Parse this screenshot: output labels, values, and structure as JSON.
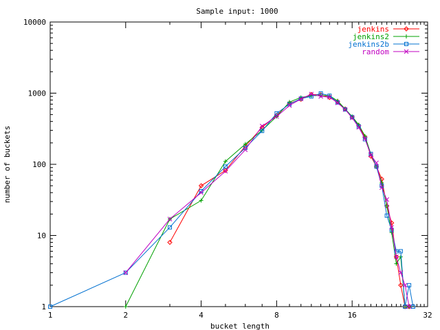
{
  "chart_data": {
    "type": "line",
    "title": "Sample input: 1000",
    "xlabel": "bucket length",
    "ylabel": "number of buckets",
    "xscale": "log2",
    "yscale": "log10",
    "xlim": [
      1,
      32
    ],
    "ylim": [
      1,
      10000
    ],
    "xticks": [
      "1",
      "2",
      "4",
      "8",
      "16",
      "32"
    ],
    "yticks": [
      "1",
      "10",
      "100",
      "1000",
      "10000"
    ],
    "grid": false,
    "legend": "top-right",
    "series": [
      {
        "name": "jenkins",
        "color": "#ff0000",
        "marker": "diamond",
        "points": [
          [
            3,
            8
          ],
          [
            4,
            50
          ],
          [
            5,
            82
          ],
          [
            6,
            180
          ],
          [
            7,
            330
          ],
          [
            8,
            490
          ],
          [
            9,
            720
          ],
          [
            10,
            820
          ],
          [
            11,
            960
          ],
          [
            12,
            950
          ],
          [
            13,
            870
          ],
          [
            14,
            760
          ],
          [
            15,
            600
          ],
          [
            16,
            460
          ],
          [
            17,
            350
          ],
          [
            18,
            240
          ],
          [
            19,
            130
          ],
          [
            20,
            93
          ],
          [
            21,
            62
          ],
          [
            22,
            26
          ],
          [
            23,
            15
          ],
          [
            24,
            5
          ],
          [
            25,
            2
          ],
          [
            26,
            1
          ],
          [
            27,
            1
          ]
        ]
      },
      {
        "name": "jenkins2",
        "color": "#00a000",
        "marker": "plus",
        "points": [
          [
            2,
            1
          ],
          [
            3,
            17
          ],
          [
            4,
            31
          ],
          [
            5,
            110
          ],
          [
            6,
            192
          ],
          [
            7,
            300
          ],
          [
            8,
            470
          ],
          [
            9,
            750
          ],
          [
            10,
            870
          ],
          [
            11,
            920
          ],
          [
            12,
            930
          ],
          [
            13,
            920
          ],
          [
            14,
            780
          ],
          [
            15,
            600
          ],
          [
            16,
            470
          ],
          [
            17,
            360
          ],
          [
            18,
            250
          ],
          [
            19,
            140
          ],
          [
            20,
            93
          ],
          [
            21,
            55
          ],
          [
            22,
            26
          ],
          [
            23,
            11
          ],
          [
            24,
            4
          ],
          [
            25,
            5
          ],
          [
            26,
            1
          ],
          [
            27,
            1
          ]
        ]
      },
      {
        "name": "jenkins2b",
        "color": "#0070d0",
        "marker": "square",
        "points": [
          [
            1,
            1
          ],
          [
            2,
            3
          ],
          [
            3,
            13
          ],
          [
            4,
            42
          ],
          [
            5,
            93
          ],
          [
            6,
            170
          ],
          [
            7,
            295
          ],
          [
            8,
            520
          ],
          [
            9,
            700
          ],
          [
            10,
            840
          ],
          [
            11,
            900
          ],
          [
            12,
            990
          ],
          [
            13,
            920
          ],
          [
            14,
            740
          ],
          [
            15,
            590
          ],
          [
            16,
            460
          ],
          [
            17,
            340
          ],
          [
            18,
            225
          ],
          [
            19,
            140
          ],
          [
            20,
            93
          ],
          [
            21,
            50
          ],
          [
            22,
            19
          ],
          [
            23,
            12
          ],
          [
            24,
            6
          ],
          [
            25,
            6
          ],
          [
            26,
            1
          ],
          [
            27,
            2
          ],
          [
            28,
            1
          ]
        ]
      },
      {
        "name": "random",
        "color": "#c000c0",
        "marker": "x",
        "points": [
          [
            2,
            3
          ],
          [
            3,
            17
          ],
          [
            4,
            40
          ],
          [
            5,
            80
          ],
          [
            6,
            160
          ],
          [
            7,
            345
          ],
          [
            8,
            470
          ],
          [
            9,
            670
          ],
          [
            10,
            830
          ],
          [
            11,
            970
          ],
          [
            12,
            900
          ],
          [
            13,
            880
          ],
          [
            14,
            730
          ],
          [
            15,
            590
          ],
          [
            16,
            450
          ],
          [
            17,
            330
          ],
          [
            18,
            230
          ],
          [
            19,
            135
          ],
          [
            20,
            105
          ],
          [
            21,
            47
          ],
          [
            22,
            32
          ],
          [
            23,
            13
          ],
          [
            24,
            5
          ],
          [
            25,
            3
          ],
          [
            26,
            2
          ],
          [
            27,
            1
          ]
        ]
      }
    ]
  }
}
